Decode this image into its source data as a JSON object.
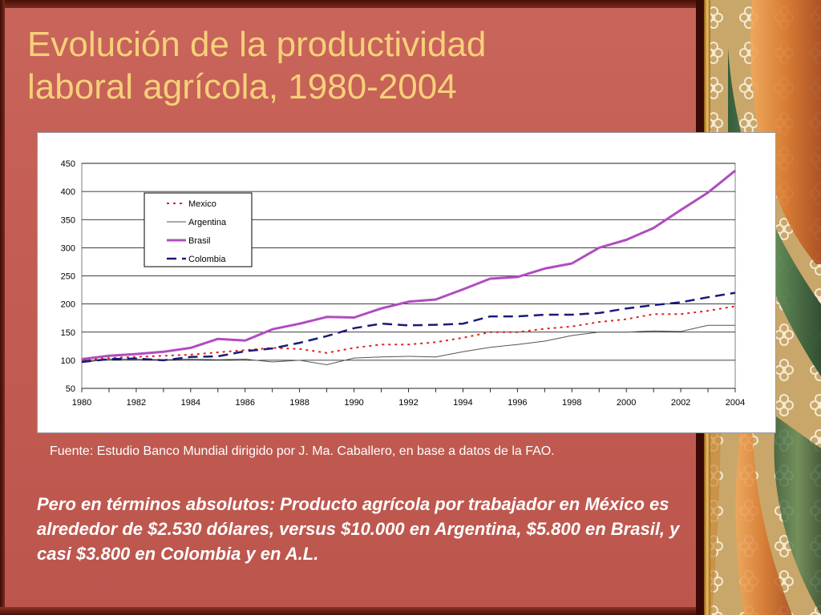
{
  "slide": {
    "title_line1": "Evolución de la productividad",
    "title_line2": "laboral agrícola, 1980-2004",
    "source": "Fuente: Estudio Banco Mundial dirigido por J. Ma. Caballero, en base a datos de la FAO.",
    "body": "Pero en términos absolutos: Producto agrícola por trabajador en México es alrededor de $2.530 dólares, versus $10.000 en Argentina, $5.800 en Brasil, y casi $3.800 en Colombia y en A.L."
  },
  "colors": {
    "background": "#c35c53",
    "title": "#f7d079",
    "mexico": "#e02020",
    "argentina": "#555555",
    "brasil": "#b04cc0",
    "colombia": "#1a1a7a"
  },
  "chart_data": {
    "type": "line",
    "title": "",
    "xlabel": "",
    "ylabel": "",
    "ylim": [
      50,
      450
    ],
    "yticks": [
      50,
      100,
      150,
      200,
      250,
      300,
      350,
      400,
      450
    ],
    "xticks": [
      1980,
      1982,
      1984,
      1986,
      1988,
      1990,
      1992,
      1994,
      1996,
      1998,
      2000,
      2002,
      2004
    ],
    "grid": "horizontal",
    "legend_position": "top-left",
    "x": [
      1980,
      1981,
      1982,
      1983,
      1984,
      1985,
      1986,
      1987,
      1988,
      1989,
      1990,
      1991,
      1992,
      1993,
      1994,
      1995,
      1996,
      1997,
      1998,
      1999,
      2000,
      2001,
      2002,
      2003,
      2004
    ],
    "series": [
      {
        "name": "Mexico",
        "style": "dotted",
        "color": "#e02020",
        "values": [
          100,
          104,
          106,
          108,
          110,
          114,
          118,
          122,
          120,
          113,
          122,
          128,
          128,
          132,
          140,
          150,
          150,
          156,
          160,
          168,
          173,
          182,
          182,
          188,
          196
        ]
      },
      {
        "name": "Argentina",
        "style": "thin",
        "color": "#555555",
        "values": [
          96,
          102,
          102,
          101,
          102,
          101,
          102,
          97,
          100,
          92,
          104,
          106,
          107,
          106,
          115,
          123,
          128,
          134,
          144,
          150,
          150,
          152,
          151,
          162,
          162
        ]
      },
      {
        "name": "Brasil",
        "style": "thick",
        "color": "#b04cc0",
        "values": [
          102,
          108,
          111,
          115,
          122,
          138,
          135,
          155,
          165,
          177,
          176,
          192,
          204,
          208,
          226,
          245,
          248,
          263,
          272,
          300,
          314,
          335,
          367,
          398,
          437
        ]
      },
      {
        "name": "Colombia",
        "style": "dashed",
        "color": "#1a1a7a",
        "values": [
          97,
          102,
          103,
          100,
          106,
          107,
          116,
          121,
          131,
          143,
          157,
          165,
          162,
          163,
          165,
          178,
          178,
          181,
          181,
          184,
          192,
          198,
          203,
          212,
          220
        ]
      }
    ]
  }
}
